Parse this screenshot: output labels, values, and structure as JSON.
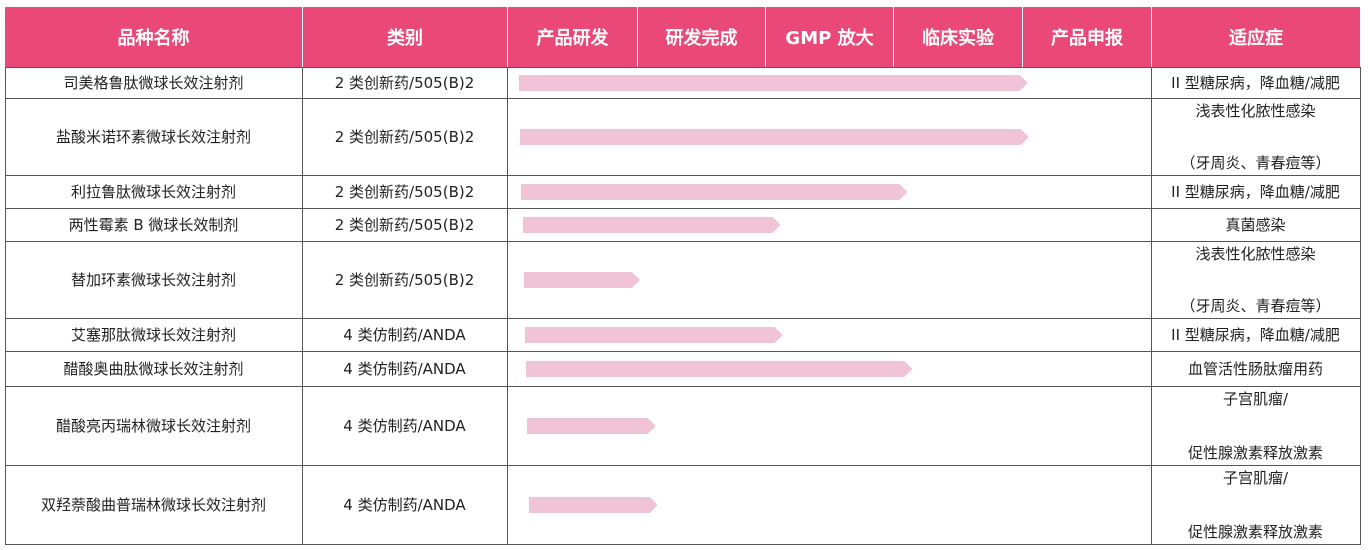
{
  "headers": {
    "name": "品种名称",
    "category": "类别",
    "stages": [
      "产品研发",
      "研发完成",
      "GMP 放大",
      "临床实验",
      "产品申报"
    ],
    "indication": "适应症"
  },
  "bar_color": "#f0c4d6",
  "header_color": "#e94878",
  "rows": [
    {
      "name": "司美格鲁肽微球长效注射剂",
      "category": "2 类创新药/505(B)2",
      "progress": 0.79,
      "indication": [
        "II 型糖尿病，降血糖/减肥"
      ]
    },
    {
      "name": "盐酸米诺环素微球长效注射剂",
      "category": "2 类创新药/505(B)2",
      "progress": 0.79,
      "indication": [
        "浅表性化脓性感染",
        "（牙周炎、青春痘等）"
      ]
    },
    {
      "name": "利拉鲁肽微球长效注射剂",
      "category": "2 类创新药/505(B)2",
      "progress": 0.6,
      "indication": [
        "II 型糖尿病，降血糖/减肥"
      ]
    },
    {
      "name": "两性霉素 B 微球长效制剂",
      "category": "2 类创新药/505(B)2",
      "progress": 0.4,
      "indication": [
        "真菌感染"
      ]
    },
    {
      "name": "替加环素微球长效注射剂",
      "category": "2 类创新药/505(B)2",
      "progress": 0.18,
      "indication": [
        "浅表性化脓性感染",
        "（牙周炎、青春痘等）"
      ]
    },
    {
      "name": "艾塞那肽微球长效注射剂",
      "category": "4 类仿制药/ANDA",
      "progress": 0.4,
      "indication": [
        "II 型糖尿病，降血糖/减肥"
      ]
    },
    {
      "name": "醋酸奥曲肽微球长效注射剂",
      "category": "4 类仿制药/ANDA",
      "progress": 0.6,
      "indication": [
        "血管活性肠肽瘤用药"
      ]
    },
    {
      "name": "醋酸亮丙瑞林微球长效注射剂",
      "category": "4 类仿制药/ANDA",
      "progress": 0.2,
      "indication": [
        "子宫肌瘤/",
        "促性腺激素释放激素"
      ]
    },
    {
      "name": "双羟萘酸曲普瑞林微球长效注射剂",
      "category": "4 类仿制药/ANDA",
      "progress": 0.2,
      "indication": [
        "子宫肌瘤/",
        "促性腺激素释放激素"
      ]
    }
  ]
}
